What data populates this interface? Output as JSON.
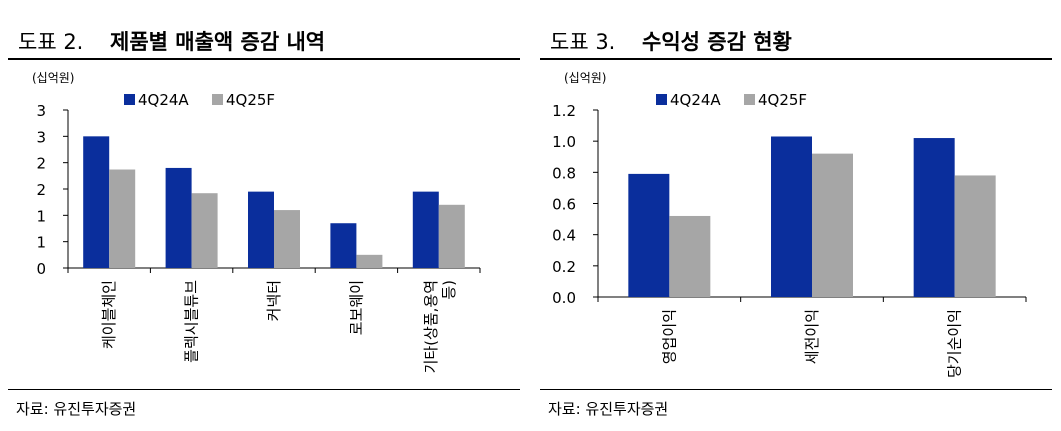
{
  "figures": [
    {
      "number": "도표 2.",
      "title": "제품별 매출액 증감 내역",
      "unit": "(십억원)",
      "source": "자료: 유진투자증권"
    },
    {
      "number": "도표 3.",
      "title": "수익성 증감 현황",
      "unit": "(십억원)",
      "source": "자료: 유진투자증권"
    }
  ],
  "chart_data": [
    {
      "type": "bar",
      "title": "제품별 매출액 증감 내역",
      "unit": "(십억원)",
      "categories": [
        "케이블체인",
        "플렉시블튜브",
        "커넥터",
        "로보웨이",
        "기타(상품,용역 등)"
      ],
      "category_lines": [
        [
          "케이블체인"
        ],
        [
          "플렉시블튜브"
        ],
        [
          "커넥터"
        ],
        [
          "로보웨이"
        ],
        [
          "기타(상품,용역",
          "등)"
        ]
      ],
      "series": [
        {
          "name": "4Q24A",
          "color": "#0a2e9c",
          "values": [
            2.5,
            1.9,
            1.45,
            0.85,
            1.45
          ]
        },
        {
          "name": "4Q25F",
          "color": "#a6a6a6",
          "values": [
            1.87,
            1.42,
            1.1,
            0.25,
            1.2
          ]
        }
      ],
      "y_ticks": [
        0,
        0.5,
        1.0,
        1.5,
        2.0,
        2.5,
        3.0
      ],
      "y_tick_labels": [
        "0",
        "1",
        "1",
        "2",
        "2",
        "3",
        "3"
      ],
      "ylim": [
        0,
        3.0
      ],
      "legend": "top-left",
      "grid": false
    },
    {
      "type": "bar",
      "title": "수익성 증감 현황",
      "unit": "(십억원)",
      "categories": [
        "영업이익",
        "세전이익",
        "당기순이익"
      ],
      "category_lines": [
        [
          "영업이익"
        ],
        [
          "세전이익"
        ],
        [
          "당기순이익"
        ]
      ],
      "series": [
        {
          "name": "4Q24A",
          "color": "#0a2e9c",
          "values": [
            0.79,
            1.03,
            1.02
          ]
        },
        {
          "name": "4Q25F",
          "color": "#a6a6a6",
          "values": [
            0.52,
            0.92,
            0.78
          ]
        }
      ],
      "y_ticks": [
        0,
        0.2,
        0.4,
        0.6,
        0.8,
        1.0,
        1.2
      ],
      "y_tick_labels": [
        "0.0",
        "0.2",
        "0.4",
        "0.6",
        "0.8",
        "1.0",
        "1.2"
      ],
      "ylim": [
        0,
        1.2
      ],
      "legend": "top-left",
      "grid": false
    }
  ]
}
